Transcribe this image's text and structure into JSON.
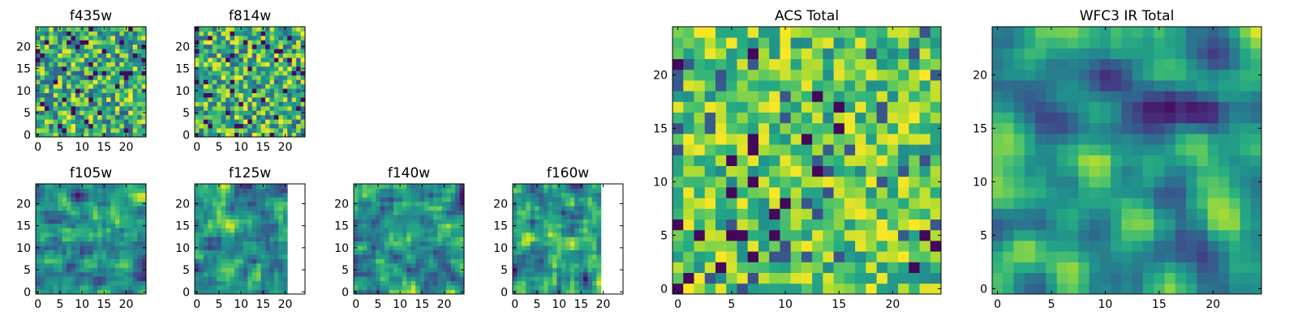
{
  "colormap": "viridis",
  "chart_data": [
    {
      "type": "heatmap",
      "title": "f435w",
      "grid_size": 25,
      "xlim": [
        0,
        25
      ],
      "ylim": [
        0,
        25
      ],
      "xticks": [
        0,
        5,
        10,
        15,
        20
      ],
      "yticks": [
        0,
        5,
        10,
        15,
        20
      ],
      "texture": "pixel-noise",
      "seed": 11,
      "coverage_cols": 25
    },
    {
      "type": "heatmap",
      "title": "f814w",
      "grid_size": 25,
      "xlim": [
        0,
        25
      ],
      "ylim": [
        0,
        25
      ],
      "xticks": [
        0,
        5,
        10,
        15,
        20
      ],
      "yticks": [
        0,
        5,
        10,
        15,
        20
      ],
      "texture": "pixel-noise",
      "seed": 23,
      "coverage_cols": 25
    },
    {
      "type": "heatmap",
      "title": "f105w",
      "grid_size": 25,
      "xlim": [
        0,
        25
      ],
      "ylim": [
        0,
        25
      ],
      "xticks": [
        0,
        5,
        10,
        15,
        20
      ],
      "yticks": [
        0,
        5,
        10,
        15,
        20
      ],
      "texture": "smoothed",
      "seed": 37,
      "coverage_cols": 25
    },
    {
      "type": "heatmap",
      "title": "f125w",
      "grid_size": 25,
      "xlim": [
        0,
        25
      ],
      "ylim": [
        0,
        25
      ],
      "xticks": [
        0,
        5,
        10,
        15,
        20
      ],
      "yticks": [
        0,
        5,
        10,
        15,
        20
      ],
      "texture": "smoothed",
      "seed": 41,
      "coverage_cols": 21
    },
    {
      "type": "heatmap",
      "title": "f140w",
      "grid_size": 25,
      "xlim": [
        0,
        25
      ],
      "ylim": [
        0,
        25
      ],
      "xticks": [
        0,
        5,
        10,
        15,
        20
      ],
      "yticks": [
        0,
        5,
        10,
        15,
        20
      ],
      "texture": "smoothed",
      "seed": 53,
      "coverage_cols": 25
    },
    {
      "type": "heatmap",
      "title": "f160w",
      "grid_size": 25,
      "xlim": [
        0,
        25
      ],
      "ylim": [
        0,
        25
      ],
      "xticks": [
        0,
        5,
        10,
        15,
        20
      ],
      "yticks": [
        0,
        5,
        10,
        15,
        20
      ],
      "texture": "smoothed",
      "seed": 67,
      "coverage_cols": 20
    },
    {
      "type": "heatmap",
      "title": "ACS Total",
      "grid_size": 25,
      "xlim": [
        0,
        25
      ],
      "ylim": [
        0,
        25
      ],
      "xticks": [
        0,
        5,
        10,
        15,
        20
      ],
      "yticks": [
        0,
        5,
        10,
        15,
        20
      ],
      "texture": "pixel-noise-bright",
      "seed": 79,
      "coverage_cols": 25
    },
    {
      "type": "heatmap",
      "title": "WFC3 IR Total",
      "grid_size": 25,
      "xlim": [
        0,
        25
      ],
      "ylim": [
        0,
        25
      ],
      "xticks": [
        0,
        5,
        10,
        15,
        20
      ],
      "yticks": [
        0,
        5,
        10,
        15,
        20
      ],
      "texture": "smoothed-blocks",
      "seed": 97,
      "coverage_cols": 25
    }
  ]
}
